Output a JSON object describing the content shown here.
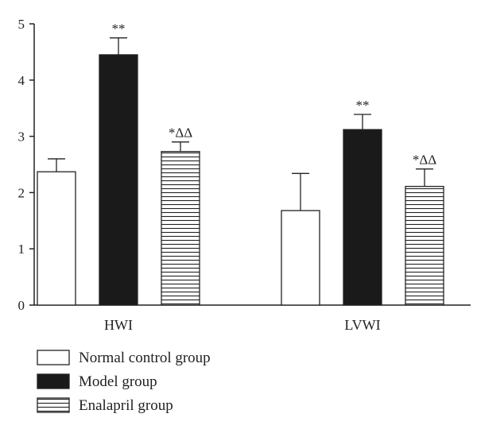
{
  "chart_data": {
    "type": "bar",
    "categories": [
      "HWI",
      "LVWI"
    ],
    "series": [
      {
        "name": "Normal control group",
        "values": [
          2.37,
          1.68
        ],
        "errors": [
          0.23,
          0.66
        ],
        "annotations": [
          "",
          ""
        ],
        "fill": "white"
      },
      {
        "name": "Model group",
        "values": [
          4.45,
          3.12
        ],
        "errors": [
          0.3,
          0.27
        ],
        "annotations": [
          "**",
          "**"
        ],
        "fill": "black"
      },
      {
        "name": "Enalapril group",
        "values": [
          2.73,
          2.11
        ],
        "errors": [
          0.17,
          0.31
        ],
        "annotations": [
          "*ΔΔ",
          "*ΔΔ"
        ],
        "fill": "hatched"
      }
    ],
    "yticks": [
      0,
      1,
      2,
      3,
      4,
      5
    ],
    "ylim": [
      0,
      5
    ],
    "grid": false,
    "legend_position": "bottom-left",
    "colors": {
      "bar_black": "#1a1a1a",
      "bar_stroke": "#222222",
      "axis": "#222222"
    }
  }
}
